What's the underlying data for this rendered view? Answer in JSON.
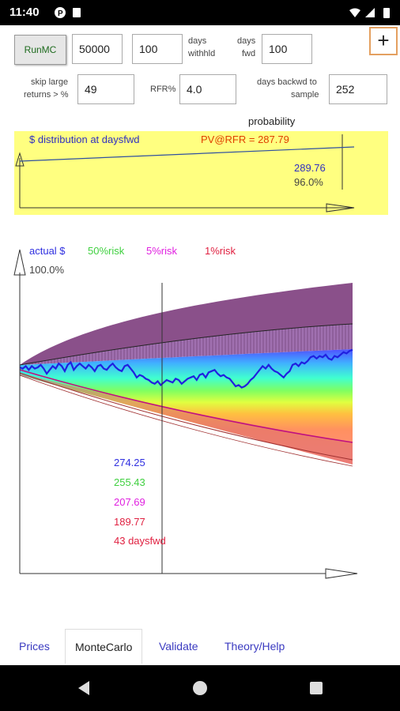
{
  "status": {
    "time": "11:40"
  },
  "controls": {
    "run_label": "RunMC",
    "sims_value": "50000",
    "withheld_value": "100",
    "withheld_label_1": "days",
    "withheld_label_2": "withhld",
    "fwd_label_1": "days",
    "fwd_label_2": "fwd",
    "fwd_value": "100",
    "add_label": "+",
    "skip_label_1": "skip large",
    "skip_label_2": "returns > %",
    "skip_value": "49",
    "rfr_label": "RFR%",
    "rfr_value": "4.0",
    "backwd_label_1": "days backwd to",
    "backwd_label_2": "sample",
    "backwd_value": "252"
  },
  "distribution_panel": {
    "header": "probability",
    "title": "$ distribution at daysfwd",
    "pv_label": "PV@RFR = 287.79",
    "price_value": "289.76",
    "prob_value": "96.0%",
    "colors": {
      "background": "#ffff80",
      "title": "#3030c0",
      "pv": "#e04000",
      "price": "#3030c0"
    }
  },
  "chart_data": {
    "type": "area",
    "legend": [
      {
        "name": "actual $",
        "color": "#3030e0"
      },
      {
        "name": "50%risk",
        "color": "#40d040"
      },
      {
        "name": "5%risk",
        "color": "#e020e0"
      },
      {
        "name": "1%risk",
        "color": "#e02040"
      }
    ],
    "top_label": "100.0%",
    "readout": {
      "actual": "274.25",
      "risk50": "255.43",
      "risk5": "207.69",
      "risk1": "189.77",
      "cursor_label": "43 daysfwd"
    },
    "actual_path": [
      0,
      -1,
      1,
      -2,
      1,
      -1,
      0,
      2,
      -1,
      -5,
      -2,
      1,
      -1,
      3,
      1,
      -3,
      2,
      4,
      -2,
      1,
      3,
      1,
      -1,
      2,
      0,
      -3,
      1,
      2,
      -1,
      -2,
      1,
      3,
      0,
      -2,
      -3,
      1,
      2,
      -1,
      -4,
      -8,
      -6,
      -7,
      -9,
      -10,
      -12,
      -13,
      -11,
      -14,
      -12,
      -10,
      -11,
      -12,
      -9,
      -10,
      -13,
      -11,
      -9,
      -8,
      -7,
      -10,
      -6,
      -5,
      -8,
      -4,
      -3,
      -2,
      -5,
      -7,
      -6,
      -8,
      -9,
      -12,
      -15,
      -14,
      -16,
      -15,
      -13,
      -10,
      -8,
      -5,
      -2,
      1,
      -1,
      2,
      -1,
      -3,
      -4,
      -6,
      -8,
      -5,
      -3,
      2,
      3,
      1,
      4,
      3,
      5,
      8,
      9,
      7,
      9,
      8,
      10,
      7,
      6,
      9,
      8,
      10,
      12,
      11,
      13,
      14
    ],
    "colors": {
      "outer_band": "#8a508a",
      "hatch": "#4a2a4a",
      "median": "#000000"
    }
  },
  "tabs": [
    "Prices",
    "MonteCarlo",
    "Validate",
    "Theory/Help"
  ]
}
